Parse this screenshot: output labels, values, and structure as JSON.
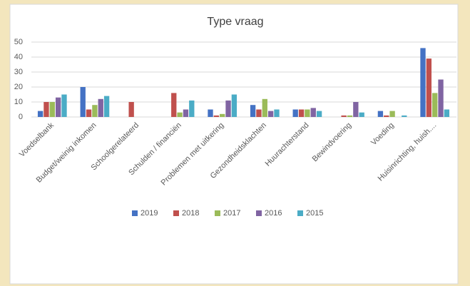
{
  "chart_data": {
    "type": "bar",
    "title": "Type vraag",
    "categories": [
      "Voedselbank",
      "Budget/weinig inkomen",
      "Schoolgerelateerd",
      "Schulden / financiën",
      "Problemen met uitkering",
      "Gezondheidsklachten",
      "Huurachterstand",
      "Bewindvoering",
      "Voeding",
      "Huisinrichting, huish...."
    ],
    "series": [
      {
        "name": "2019",
        "color": "#4472c4",
        "values": [
          4,
          20,
          0,
          0,
          5,
          8,
          5,
          0,
          4,
          46
        ]
      },
      {
        "name": "2018",
        "color": "#c0504d",
        "values": [
          10,
          5,
          10,
          16,
          1,
          5,
          5,
          1,
          1,
          39
        ]
      },
      {
        "name": "2017",
        "color": "#9bbb59",
        "values": [
          10,
          8,
          0,
          3,
          2,
          12,
          5,
          1,
          4,
          16
        ]
      },
      {
        "name": "2016",
        "color": "#8064a2",
        "values": [
          13,
          12,
          0,
          5,
          11,
          4,
          6,
          10,
          0,
          25
        ]
      },
      {
        "name": "2015",
        "color": "#4bacc6",
        "values": [
          15,
          14,
          0,
          11,
          15,
          5,
          4,
          3,
          1,
          5
        ]
      }
    ],
    "ylim": [
      0,
      50
    ],
    "yticks": [
      0,
      10,
      20,
      30,
      40,
      50
    ],
    "grid": true,
    "legend": "bottom"
  }
}
